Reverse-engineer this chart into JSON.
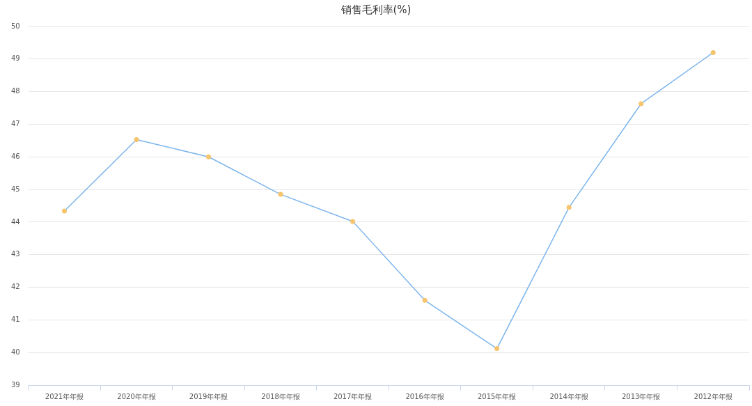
{
  "chart_data": {
    "type": "line",
    "title": "销售毛利率(%)",
    "categories": [
      "2021年年报",
      "2020年年报",
      "2019年年报",
      "2018年年报",
      "2017年年报",
      "2016年年报",
      "2015年年报",
      "2014年年报",
      "2013年年报",
      "2012年年报"
    ],
    "series": [
      {
        "color": "#7cb5ec",
        "colors": [
          "#f7c46c",
          "#f7c46c",
          "#f7c46c",
          "#f7c46c",
          "#f7c46c",
          "#f7c46c",
          "#f7c46c",
          "#f7c46c",
          "#f7c46c",
          "#f7c46c"
        ],
        "values": [
          44.34,
          46.53,
          46.0,
          44.85,
          44.02,
          41.6,
          40.12,
          44.45,
          47.63,
          49.2
        ]
      }
    ],
    "ylim": [
      39,
      50
    ],
    "yticks": [
      39,
      40,
      41,
      42,
      43,
      44,
      45,
      46,
      47,
      48,
      49,
      50
    ],
    "grid": "y",
    "legend": false,
    "marker": "circle",
    "line_style": "solid"
  }
}
